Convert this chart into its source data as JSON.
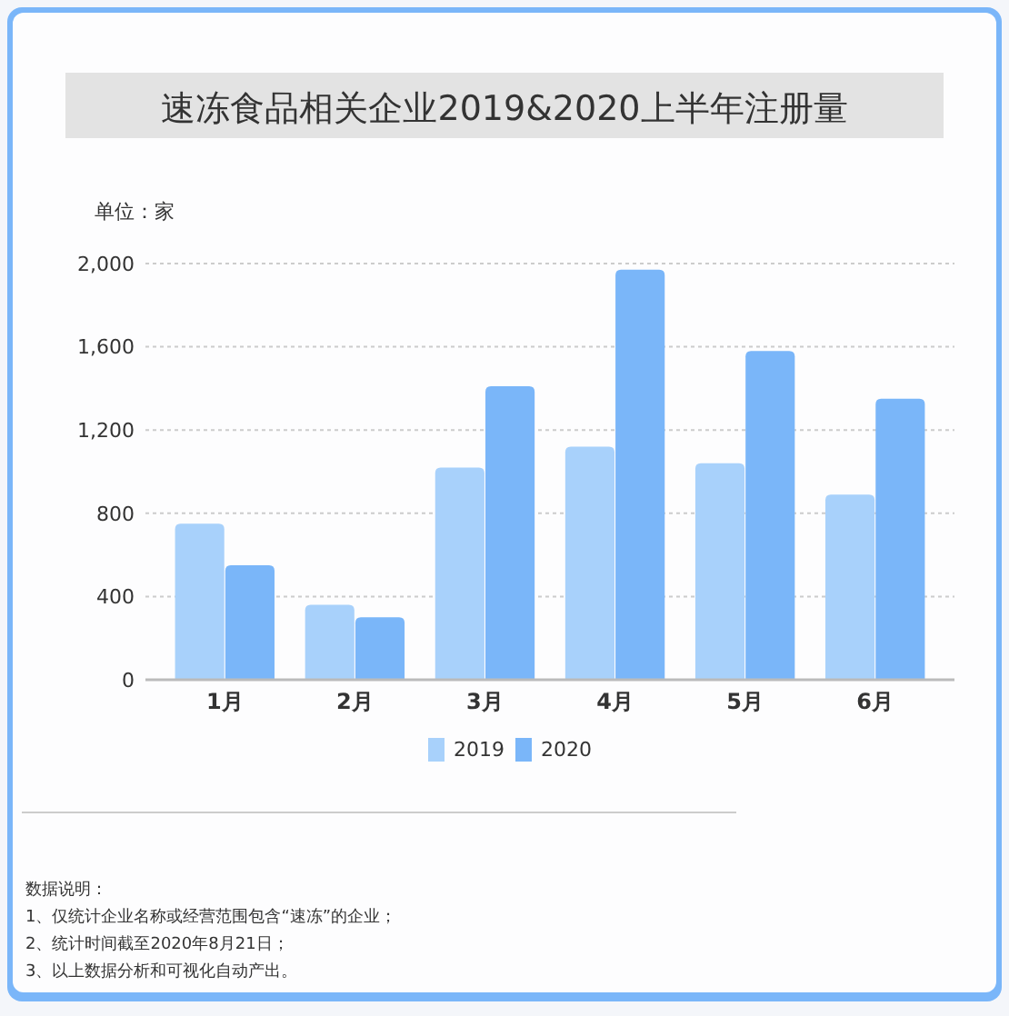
{
  "chart_data": {
    "type": "bar",
    "title": "速冻食品相关企业2019&2020上半年注册量",
    "ylabel": "单位：家",
    "categories": [
      "1月",
      "2月",
      "3月",
      "4月",
      "5月",
      "6月"
    ],
    "series": [
      {
        "name": "2019",
        "color": "#a8d1fb",
        "values": [
          750,
          360,
          1020,
          1120,
          1040,
          890
        ]
      },
      {
        "name": "2020",
        "color": "#7ab6f9",
        "values": [
          550,
          300,
          1410,
          1970,
          1580,
          1350
        ]
      }
    ],
    "ylim": [
      0,
      2000
    ],
    "yticks": [
      0,
      {
        "value": 400,
        "label": "400"
      },
      {
        "value": 800,
        "label": "800"
      },
      {
        "value": 1200,
        "label": "1,200"
      },
      {
        "value": 1600,
        "label": "1,600"
      },
      {
        "value": 2000,
        "label": "2,000"
      }
    ],
    "grid": "y",
    "legend": "bottom",
    "annotations": [
      "数据说明：",
      "1、仅统计企业名称或经营范围包含“速冻”的企业；",
      "2、统计时间截至2020年8月21日；",
      "3、以上数据分析和可视化自动产出。"
    ]
  }
}
